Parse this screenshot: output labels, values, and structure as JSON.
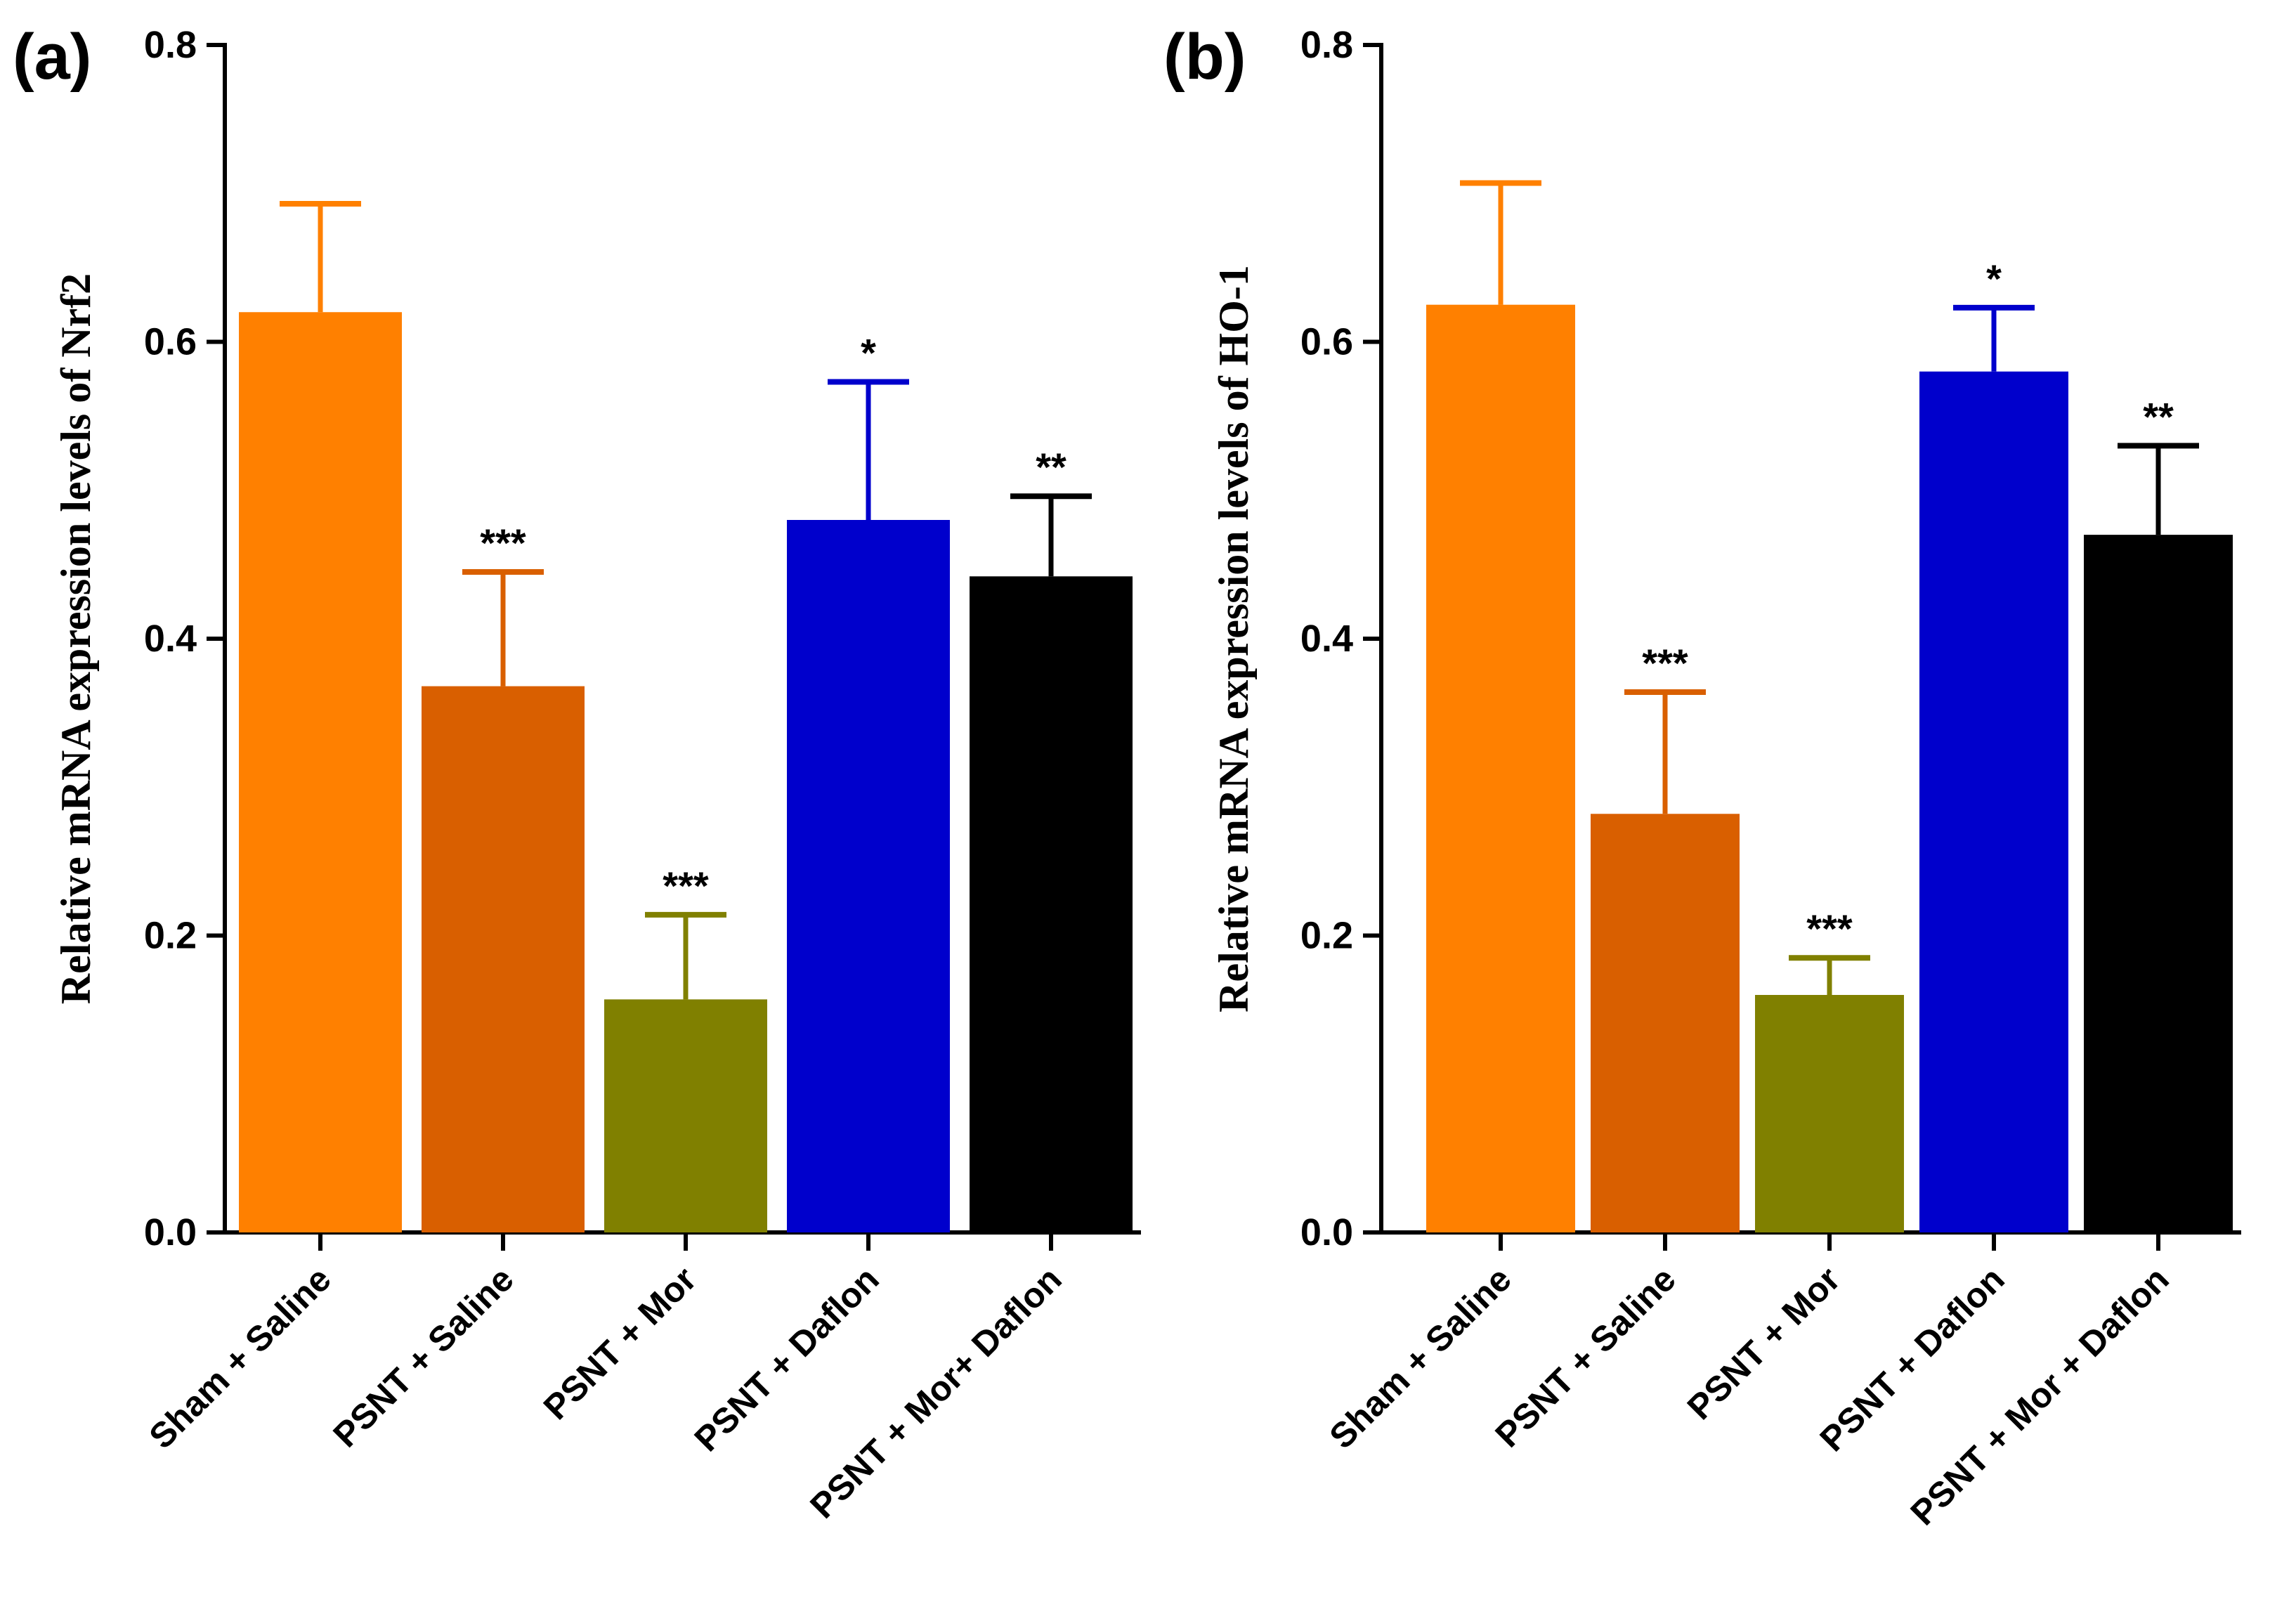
{
  "chart_data": [
    {
      "type": "bar",
      "panel_label": "(a)",
      "title": "",
      "xlabel": "",
      "ylabel": "Relative mRNA expression levels of Nrf2",
      "ylim": [
        0,
        0.8
      ],
      "yticks": [
        "0.0",
        "0.2",
        "0.4",
        "0.6",
        "0.8"
      ],
      "categories": [
        "Sham + Saline",
        "PSNT + Saline",
        "PSNT + Mor",
        "PSNT + Daflon",
        "PSNT + Mor+ Daflon"
      ],
      "values": [
        0.62,
        0.368,
        0.157,
        0.48,
        0.442
      ],
      "errors": [
        0.073,
        0.077,
        0.057,
        0.093,
        0.054
      ],
      "significance": [
        "",
        "***",
        "***",
        "*",
        "**"
      ],
      "colors": [
        "#ff8000",
        "#d95f00",
        "#808000",
        "#0000cc",
        "#000000"
      ],
      "grid": false
    },
    {
      "type": "bar",
      "panel_label": "(b)",
      "title": "",
      "xlabel": "",
      "ylabel": "Relative mRNA expression levels of HO-1",
      "ylim": [
        0,
        0.8
      ],
      "yticks": [
        "0.0",
        "0.2",
        "0.4",
        "0.6",
        "0.8"
      ],
      "categories": [
        "Sham + Saline",
        "PSNT + Saline",
        "PSNT + Mor",
        "PSNT + Daflon",
        "PSNT + Mor + Daflon"
      ],
      "values": [
        0.625,
        0.282,
        0.16,
        0.58,
        0.47
      ],
      "errors": [
        0.082,
        0.082,
        0.025,
        0.043,
        0.06
      ],
      "significance": [
        "",
        "***",
        "***",
        "*",
        "**"
      ],
      "colors": [
        "#ff8000",
        "#d95f00",
        "#808000",
        "#0000cc",
        "#000000"
      ],
      "grid": false
    }
  ]
}
